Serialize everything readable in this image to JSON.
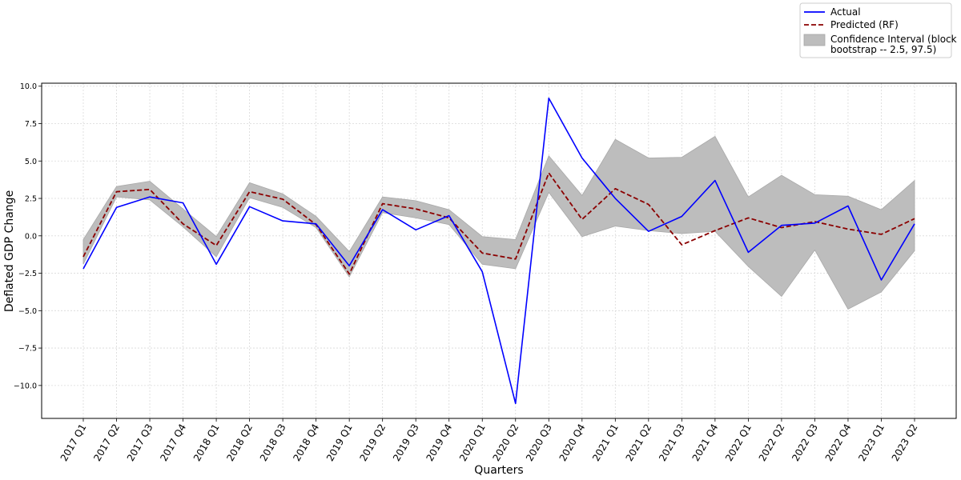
{
  "chart_data": {
    "type": "line",
    "title": "",
    "xlabel": "Quarters",
    "ylabel": "Deflated GDP Change",
    "ylim": [
      -12.2,
      10.2
    ],
    "yticks": [
      "10.0",
      "7.5",
      "5.0",
      "2.5",
      "0.0",
      "−2.5",
      "−5.0",
      "−7.5",
      "−10.0"
    ],
    "ytick_values": [
      10.0,
      7.5,
      5.0,
      2.5,
      0.0,
      -2.5,
      -5.0,
      -7.5,
      -10.0
    ],
    "grid": true,
    "legend_position": "top-right",
    "categories": [
      "2017 Q1",
      "2017 Q2",
      "2017 Q3",
      "2017 Q4",
      "2018 Q1",
      "2018 Q2",
      "2018 Q3",
      "2018 Q4",
      "2019 Q1",
      "2019 Q2",
      "2019 Q3",
      "2019 Q4",
      "2020 Q1",
      "2020 Q2",
      "2020 Q3",
      "2020 Q4",
      "2021 Q1",
      "2021 Q2",
      "2021 Q3",
      "2021 Q4",
      "2022 Q1",
      "2022 Q2",
      "2022 Q3",
      "2022 Q4",
      "2023 Q1",
      "2023 Q2"
    ],
    "series": [
      {
        "name": "Actual",
        "color": "#0000ff",
        "style": "solid",
        "values": [
          -2.2,
          1.9,
          2.6,
          2.2,
          -1.9,
          1.95,
          1.0,
          0.8,
          -2.0,
          1.75,
          0.4,
          1.35,
          -2.4,
          -11.2,
          9.2,
          5.2,
          2.5,
          0.3,
          1.3,
          3.7,
          -1.1,
          0.7,
          0.85,
          2.0,
          -2.95,
          0.8
        ]
      },
      {
        "name": "Predicted (RF)",
        "color": "#8b0000",
        "style": "dashed",
        "values": [
          -1.4,
          2.95,
          3.1,
          0.8,
          -0.65,
          2.95,
          2.45,
          0.75,
          -2.55,
          2.15,
          1.8,
          1.2,
          -1.15,
          -1.55,
          4.2,
          1.1,
          3.15,
          2.1,
          -0.6,
          0.35,
          1.2,
          0.55,
          0.95,
          0.45,
          0.1,
          1.15
        ]
      },
      {
        "name": "Confidence Interval (block bootstrap -- 2.5, 97.5)",
        "color": "#bdbdbd",
        "style": "band",
        "lower": [
          -1.9,
          2.6,
          2.4,
          0.6,
          -1.4,
          2.55,
          1.9,
          0.55,
          -2.75,
          1.55,
          1.2,
          0.75,
          -1.9,
          -2.2,
          2.9,
          -0.05,
          0.65,
          0.35,
          0.15,
          0.3,
          -2.05,
          -4.05,
          -0.95,
          -4.9,
          -3.75,
          -1.0
        ],
        "upper": [
          -0.25,
          3.3,
          3.65,
          1.8,
          -0.05,
          3.55,
          2.8,
          1.3,
          -1.05,
          2.6,
          2.35,
          1.75,
          -0.05,
          -0.25,
          5.35,
          2.7,
          6.45,
          5.2,
          5.25,
          6.65,
          2.6,
          4.05,
          2.75,
          2.65,
          1.75,
          3.7
        ]
      }
    ]
  },
  "legend": {
    "entries": [
      {
        "label_lines": [
          "Actual"
        ],
        "color": "#0000ff",
        "kind": "solid"
      },
      {
        "label_lines": [
          "Predicted (RF)"
        ],
        "color": "#8b0000",
        "kind": "dashed"
      },
      {
        "label_lines": [
          "Confidence Interval (block",
          "bootstrap -- 2.5, 97.5)"
        ],
        "color": "#bdbdbd",
        "kind": "patch"
      }
    ]
  }
}
